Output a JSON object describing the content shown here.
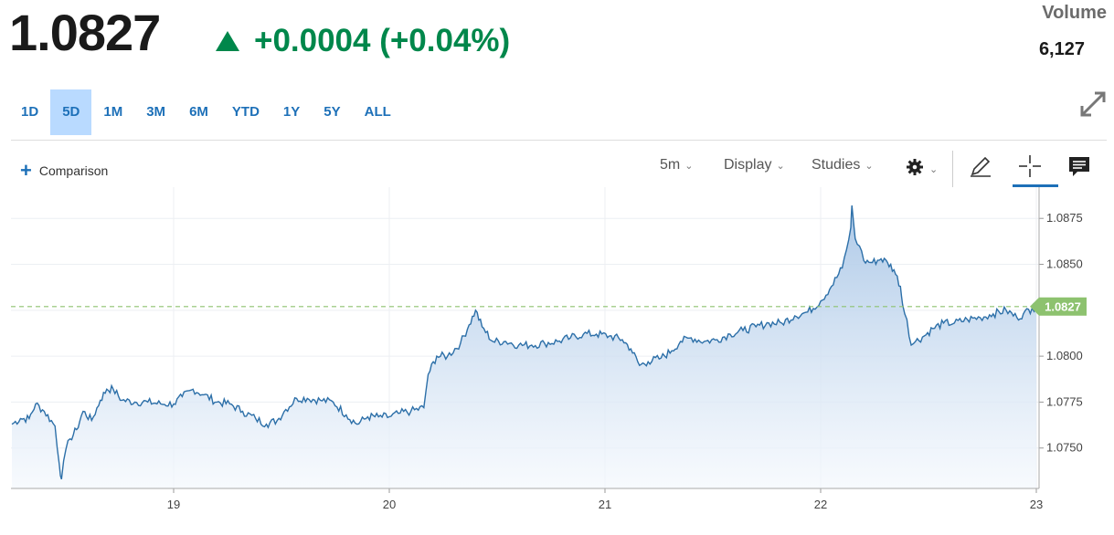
{
  "quote": {
    "price": "1.0827",
    "change": "+0.0004 (+0.04%)",
    "direction_icon": "triangle-up-icon",
    "volume_label": "Volume",
    "volume_value": "6,127"
  },
  "ranges": [
    "1D",
    "5D",
    "1M",
    "3M",
    "6M",
    "YTD",
    "1Y",
    "5Y",
    "ALL"
  ],
  "active_range": "5D",
  "toolbar": {
    "comparison_label": "Comparison",
    "interval_label": "5m",
    "display_label": "Display",
    "studies_label": "Studies"
  },
  "colors": {
    "up": "#00874b",
    "line": "#2c6fa8",
    "last_price_tag": "#8dc26f",
    "active_range_bg": "#b9daff"
  },
  "chart_data": {
    "type": "area",
    "x_tick_labels": [
      "19",
      "20",
      "21",
      "22",
      "23"
    ],
    "y_tick_labels": [
      "1.0875",
      "1.0850",
      "1.0800",
      "1.0775",
      "1.0750"
    ],
    "ylim": [
      1.0728,
      1.0892
    ],
    "last_price_label": "1.0827",
    "last_price": 1.0827,
    "grid": true,
    "series": [
      {
        "points": [
          [
            18.25,
            1.0763
          ],
          [
            18.29,
            1.0766
          ],
          [
            18.33,
            1.0766
          ],
          [
            18.36,
            1.0774
          ],
          [
            18.4,
            1.077
          ],
          [
            18.45,
            1.0762
          ],
          [
            18.47,
            1.0741
          ],
          [
            18.48,
            1.0733
          ],
          [
            18.5,
            1.0749
          ],
          [
            18.52,
            1.0755
          ],
          [
            18.55,
            1.076
          ],
          [
            18.58,
            1.077
          ],
          [
            18.62,
            1.0765
          ],
          [
            18.66,
            1.0776
          ],
          [
            18.69,
            1.0782
          ],
          [
            18.72,
            1.0782
          ],
          [
            18.76,
            1.0776
          ],
          [
            18.82,
            1.0775
          ],
          [
            18.88,
            1.0775
          ],
          [
            18.94,
            1.0774
          ],
          [
            19.0,
            1.0774
          ],
          [
            19.04,
            1.0778
          ],
          [
            19.09,
            1.0782
          ],
          [
            19.14,
            1.0779
          ],
          [
            19.2,
            1.0775
          ],
          [
            19.26,
            1.0774
          ],
          [
            19.32,
            1.077
          ],
          [
            19.38,
            1.0766
          ],
          [
            19.43,
            1.0763
          ],
          [
            19.48,
            1.0765
          ],
          [
            19.52,
            1.0771
          ],
          [
            19.57,
            1.0777
          ],
          [
            19.62,
            1.0777
          ],
          [
            19.68,
            1.0776
          ],
          [
            19.74,
            1.0775
          ],
          [
            19.8,
            1.0768
          ],
          [
            19.85,
            1.0763
          ],
          [
            19.9,
            1.0767
          ],
          [
            19.95,
            1.0767
          ],
          [
            20.0,
            1.0767
          ],
          [
            20.05,
            1.0769
          ],
          [
            20.1,
            1.077
          ],
          [
            20.16,
            1.0772
          ],
          [
            20.18,
            1.079
          ],
          [
            20.22,
            1.08
          ],
          [
            20.27,
            1.08
          ],
          [
            20.33,
            1.0807
          ],
          [
            20.37,
            1.0817
          ],
          [
            20.4,
            1.0825
          ],
          [
            20.43,
            1.0816
          ],
          [
            20.48,
            1.0808
          ],
          [
            20.54,
            1.0808
          ],
          [
            20.6,
            1.0806
          ],
          [
            20.66,
            1.0806
          ],
          [
            20.72,
            1.0807
          ],
          [
            20.78,
            1.0808
          ],
          [
            20.84,
            1.081
          ],
          [
            20.9,
            1.0812
          ],
          [
            20.96,
            1.0812
          ],
          [
            21.02,
            1.0811
          ],
          [
            21.08,
            1.0809
          ],
          [
            21.12,
            1.0804
          ],
          [
            21.16,
            1.0795
          ],
          [
            21.2,
            1.0797
          ],
          [
            21.26,
            1.0799
          ],
          [
            21.31,
            1.0803
          ],
          [
            21.35,
            1.0808
          ],
          [
            21.4,
            1.081
          ],
          [
            21.46,
            1.0808
          ],
          [
            21.52,
            1.0809
          ],
          [
            21.58,
            1.0812
          ],
          [
            21.64,
            1.0814
          ],
          [
            21.7,
            1.0816
          ],
          [
            21.76,
            1.0818
          ],
          [
            21.82,
            1.0818
          ],
          [
            21.88,
            1.0822
          ],
          [
            21.94,
            1.0824
          ],
          [
            22.0,
            1.083
          ],
          [
            22.05,
            1.0838
          ],
          [
            22.1,
            1.0848
          ],
          [
            22.12,
            1.0858
          ],
          [
            22.14,
            1.087
          ],
          [
            22.145,
            1.0882
          ],
          [
            22.16,
            1.0864
          ],
          [
            22.18,
            1.086
          ],
          [
            22.2,
            1.0852
          ],
          [
            22.24,
            1.0851
          ],
          [
            22.28,
            1.0853
          ],
          [
            22.31,
            1.0851
          ],
          [
            22.34,
            1.0847
          ],
          [
            22.37,
            1.0838
          ],
          [
            22.38,
            1.0828
          ],
          [
            22.4,
            1.082
          ],
          [
            22.42,
            1.0806
          ],
          [
            22.44,
            1.0808
          ],
          [
            22.48,
            1.0811
          ],
          [
            22.52,
            1.0815
          ],
          [
            22.57,
            1.0818
          ],
          [
            22.62,
            1.0818
          ],
          [
            22.68,
            1.082
          ],
          [
            22.74,
            1.0821
          ],
          [
            22.8,
            1.0823
          ],
          [
            22.86,
            1.0825
          ],
          [
            22.91,
            1.0821
          ],
          [
            22.94,
            1.0823
          ],
          [
            22.98,
            1.0826
          ],
          [
            23.0,
            1.0827
          ]
        ]
      }
    ]
  }
}
